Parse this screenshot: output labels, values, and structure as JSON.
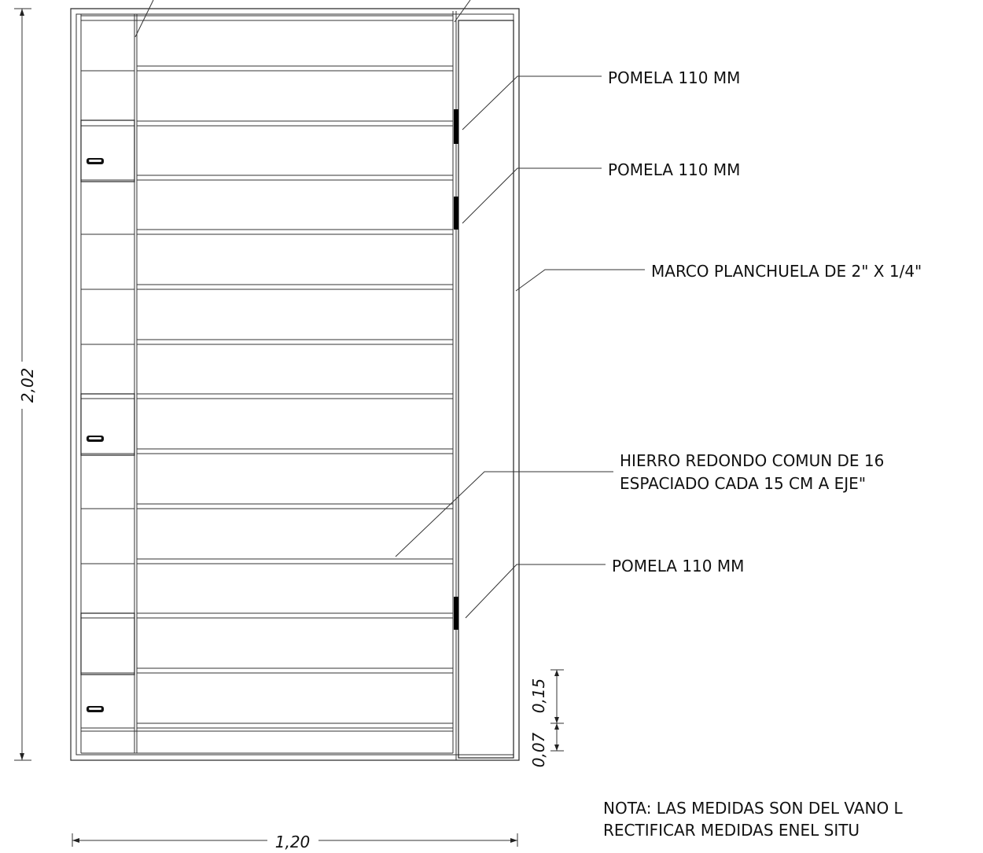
{
  "annotations": {
    "pomela_1": "POMELA 110 MM",
    "pomela_2": "POMELA 110 MM",
    "marco": "MARCO PLANCHUELA DE 2\" X 1/4\"",
    "hierro_line1": "HIERRO REDONDO COMUN DE 16",
    "hierro_line2": "ESPACIADO CADA 15 CM A EJE\"",
    "pomela_3": "POMELA 110 MM"
  },
  "dimensions": {
    "height": "2,02",
    "width": "1,20",
    "spacing": "0,15",
    "bottom": "0,07"
  },
  "note": {
    "line1": "NOTA: LAS MEDIDAS SON DEL VANO L",
    "line2": "RECTIFICAR MEDIDAS ENEL SITU"
  }
}
